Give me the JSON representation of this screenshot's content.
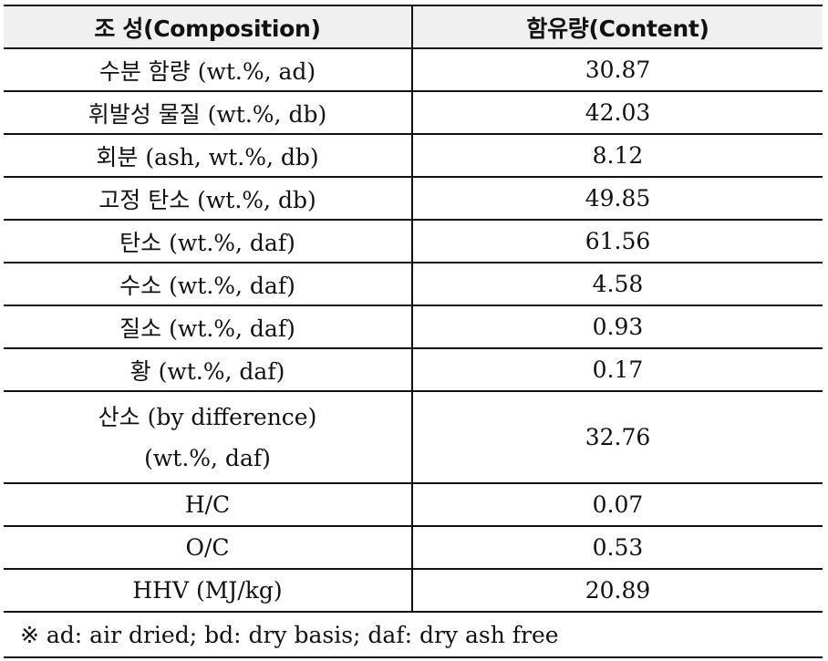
{
  "table": {
    "headers": {
      "composition": "조 성(Composition)",
      "content": "함유량(Content)"
    },
    "rows": [
      {
        "label": "수분 함량 (wt.%, ad)",
        "value": "30.87"
      },
      {
        "label": "휘발성 물질 (wt.%, db)",
        "value": "42.03"
      },
      {
        "label": "회분 (ash, wt.%, db)",
        "value": "8.12"
      },
      {
        "label": "고정 탄소 (wt.%, db)",
        "value": "49.85"
      },
      {
        "label": "탄소 (wt.%, daf)",
        "value": "61.56"
      },
      {
        "label": "수소 (wt.%, daf)",
        "value": "4.58"
      },
      {
        "label": "질소 (wt.%, daf)",
        "value": "0.93"
      },
      {
        "label": "황 (wt.%, daf)",
        "value": "0.17"
      },
      {
        "label_line1": "산소 (by difference)",
        "label_line2": "(wt.%, daf)",
        "value": "32.76"
      },
      {
        "label": "H/C",
        "value": "0.07"
      },
      {
        "label": "O/C",
        "value": "0.53"
      },
      {
        "label": "HHV (MJ/kg)",
        "value": "20.89"
      }
    ],
    "footnote": "※ ad: air dried; bd: dry basis; daf: dry ash free"
  },
  "colors": {
    "header_background": "#f0f0f0",
    "border": "#111111",
    "text": "#111111"
  }
}
